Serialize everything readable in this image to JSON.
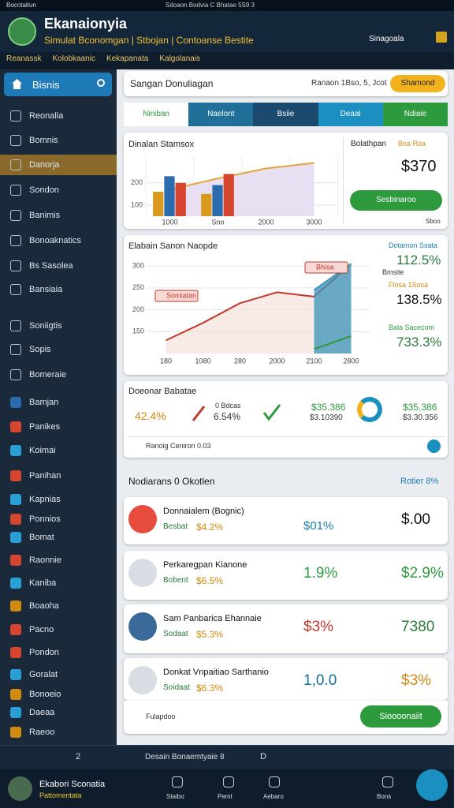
{
  "status_bar": {
    "app": "Bocotaitun",
    "center": "Sdoaon Bodvia C Bhatae 5S9 3"
  },
  "header": {
    "title": "Ekanaionyia",
    "subtitle": "Simulat Bconomgan | Stbojan | Contoanse Bestite",
    "badge": "Sinagoala"
  },
  "breadcrumbs": [
    "Reanassk",
    "Kolobkaanic",
    "Kekapanata",
    "Kalgolanais"
  ],
  "sidebar": {
    "search_label": "Bisnis",
    "active": 2,
    "items": [
      "Reonalia",
      "Bomnis",
      "Danorja",
      "Sondon",
      "Banimis",
      "Bonoaknatics",
      "Bs Sasolea",
      "Bansiaia",
      "Soniigtis",
      "Sopis",
      "Bomeraie",
      "Bamjan",
      "Panikes",
      "Koimai",
      "Panihan",
      "Kapnias",
      "Ponnios",
      "Bomat",
      "Raonnie",
      "Kaniba",
      "Boaoha",
      "Pacno",
      "Pondon",
      "Goralat",
      "Bonoeio",
      "Daeaa",
      "Raeoo"
    ]
  },
  "top_card": {
    "title": "Sangan Donuliagan",
    "date": "Ranaon 1Bso, 5, Jcot",
    "button": "Shamond"
  },
  "tabs": [
    "Niniban",
    "Naelont",
    "Bsiie",
    "Deaal",
    "Ndiaie"
  ],
  "bar_chart": {
    "type": "bar",
    "title": "Dinalan Stamsox",
    "categories": [
      "1000",
      "Sno",
      "2000",
      "3000"
    ],
    "series": [
      {
        "color": "#d99a1e",
        "values": [
          160,
          150,
          null,
          null
        ]
      },
      {
        "color": "#2a6cae",
        "values": [
          230,
          190,
          null,
          null
        ]
      },
      {
        "color": "#d6452f",
        "values": [
          200,
          240,
          null,
          null
        ]
      }
    ],
    "line": {
      "color": "#e0a63a",
      "values": [
        170,
        220,
        265,
        290
      ]
    },
    "ylim": [
      50,
      320
    ],
    "yticks": [
      100,
      200
    ],
    "grid": true,
    "side": {
      "title": "Bolathpan",
      "rating": "Bna Roa",
      "value": "$370",
      "button": "Sesbinaroo",
      "note": "Sboo"
    }
  },
  "area_chart": {
    "type": "line",
    "title": "Elabain Sanon Naopde",
    "categories": [
      "180",
      "1080",
      "280",
      "2000",
      "2100",
      "2800"
    ],
    "series": [
      {
        "color": "#c0392b",
        "values": [
          130,
          170,
          215,
          240,
          230,
          305
        ]
      },
      {
        "color": "#3a93b8",
        "values": [
          null,
          null,
          null,
          null,
          245,
          305
        ],
        "area": true
      },
      {
        "color": "#2e9a3e",
        "values": [
          null,
          null,
          null,
          null,
          110,
          140
        ]
      }
    ],
    "ylim": [
      100,
      320
    ],
    "yticks": [
      150,
      200,
      250,
      300
    ],
    "grid": true,
    "callouts": [
      "Somiatan",
      "Bhisa"
    ],
    "stats": [
      {
        "label": "Dotamon Ssata",
        "value": "112.5%",
        "color": "#1a7fb0"
      },
      {
        "label": "Flosa 1Sosa",
        "value": "138.5%",
        "color": "#d08a10"
      },
      {
        "label": "Bala Sacecom",
        "value": "733.3%",
        "color": "#2e9a3e"
      }
    ],
    "stats_note": "Bmsite"
  },
  "summary": {
    "title": "Doeonar Babatae",
    "first": "42.4%",
    "second_label": "0 Bdcas",
    "second": "6.54%",
    "third": "$35.386",
    "third_sub": "$3.10390",
    "fourth": "$35.386",
    "fourth_sub": "$3.30.356",
    "footer": "Ranoig Ceniron 0.03"
  },
  "section": {
    "title": "Nodiarans 0 Okotlen",
    "link": "Rotier 8%"
  },
  "list": [
    {
      "title": "Donnaialem (Bognic)",
      "sub": "Besbat",
      "value": "$4.2%",
      "metric": "$01%",
      "right": "$.00"
    },
    {
      "title": "Perkaregpan Kianone",
      "sub": "Bobent",
      "value": "$6.5%",
      "metric": "1.9%",
      "right": "$2.9%"
    },
    {
      "title": "Sam Panbarica Ehannaie",
      "sub": "Sodaat",
      "value": "$5.3%",
      "metric": "$3%",
      "right": "7380"
    },
    {
      "title": "Donkat Vnpaitiao Sarthanio",
      "sub": "Soidaat",
      "value": "$6.3%",
      "metric": "1,0.0",
      "right": "$3%"
    }
  ],
  "list_footer": {
    "label": "Fulapdoo",
    "button": "Sioooonaiit"
  },
  "bottom_bar": {
    "page": "2",
    "label": "Desain Bonaemtyaie 8",
    "right": "D"
  },
  "nav": {
    "user": "Ekabori Sconatia",
    "user_sub": "Pattomentata",
    "items": [
      "Staibo",
      "Pemt",
      "Aebaro",
      "Bons"
    ]
  }
}
